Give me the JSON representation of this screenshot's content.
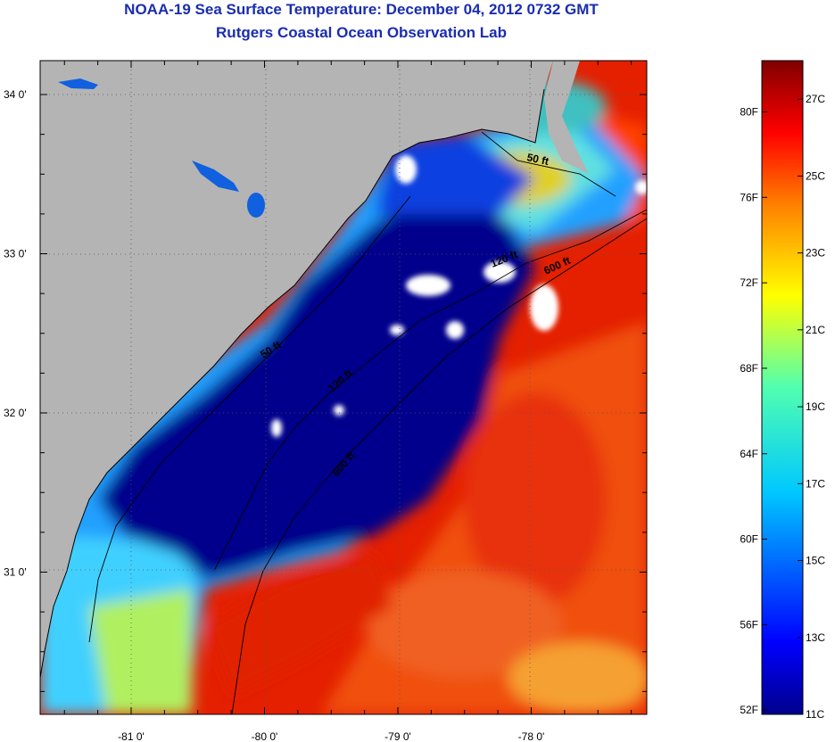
{
  "title": "NOAA-19 Sea Surface Temperature:  December 04, 2012 0732 GMT",
  "subtitle": "Rutgers Coastal Ocean Observation Lab",
  "map": {
    "lat_labels": [
      {
        "lat": 34.0,
        "text": "34 0'"
      },
      {
        "lat": 33.0,
        "text": "33 0'"
      },
      {
        "lat": 32.0,
        "text": "32 0'"
      },
      {
        "lat": 31.0,
        "text": "31 0'"
      }
    ],
    "lon_labels": [
      {
        "lon": -81.0,
        "text": "-81 0'"
      },
      {
        "lon": -80.0,
        "text": "-80 0'"
      },
      {
        "lon": -79.0,
        "text": "-79 0'"
      },
      {
        "lon": -78.0,
        "text": "-78 0'"
      }
    ],
    "contours": [
      {
        "text": "50 ft"
      },
      {
        "text": "120 ft"
      },
      {
        "text": "600 ft"
      }
    ]
  },
  "colorbar": {
    "fahrenheit_labels": [
      "80F",
      "76F",
      "72F",
      "68F",
      "64F",
      "60F",
      "56F",
      "52F"
    ],
    "celsius_labels": [
      "27C",
      "25C",
      "23C",
      "21C",
      "19C",
      "17C",
      "15C",
      "13C",
      "11C"
    ],
    "f_values": [
      80,
      76,
      72,
      68,
      64,
      60,
      56,
      52
    ],
    "c_values": [
      27,
      25,
      23,
      21,
      19,
      17,
      15,
      13,
      11
    ],
    "c_min": 11,
    "c_max": 28
  },
  "colors": {
    "land": "#b4b4b4",
    "cold": "#00008c",
    "warm": "#e42000",
    "title": "#1a2db0"
  }
}
